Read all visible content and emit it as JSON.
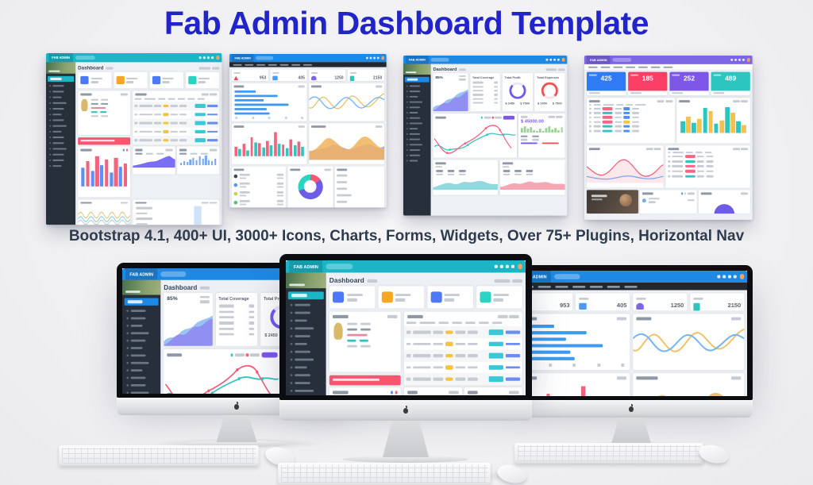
{
  "page": {
    "title": "Fab Admin Dashboard Template",
    "subtitle": "Bootstrap 4.1, 400+ UI, 3000+ Icons, Charts, Forms, Widgets, Over 75+ Plugins, Horizontal Nav"
  },
  "brand": "FAB ADMIN",
  "colors": {
    "title_blue": "#2125c9",
    "subtitle_navy": "#2f3c4e",
    "teal_navbar": "#1bb5c6",
    "blue_navbar": "#1e88e5",
    "purple_navbar": "#7d66e3",
    "sidebar_dark": "#27303a",
    "alert_pink": "#f8566f",
    "stat_card_blue": "#2f7bf6",
    "stat_card_red": "#fb3e64",
    "stat_card_purple": "#7e57e8",
    "stat_card_teal": "#2cc5c0",
    "chart_blue": "#5b8ff9",
    "chart_red": "#f0647e",
    "chart_teal": "#35c3c1",
    "chart_yellow": "#eec36a",
    "chart_purple_area": "#7b6ef6"
  },
  "icons": {
    "apple_logo": "apple-logo-icon (css shape)",
    "teal_dashboard_stat_icons": [
      "user-icon",
      "document-icon",
      "calendar-icon",
      "heart-icon"
    ],
    "blue_dashboard_stat_icons": [
      "alert-triangle-icon",
      "image-icon",
      "user-group-icon",
      "box-icon"
    ],
    "navbar_icons": [
      "search-icon",
      "grid-icon",
      "mail-icon",
      "bell-icon",
      "avatar"
    ]
  },
  "dashboard_teal": {
    "heading": "Dashboard"
  },
  "dashboard_horizontal_blue": {
    "stats": [
      {
        "icon": "alert-triangle-icon",
        "value": "953"
      },
      {
        "icon": "image-icon",
        "value": "405"
      },
      {
        "icon": "user-group-icon",
        "value": "1250"
      },
      {
        "icon": "box-icon",
        "value": "2150"
      }
    ]
  },
  "dashboard_sidebar_blue": {
    "heading": "Dashboard",
    "percent": "85%",
    "coverage_title": "Total Coverage",
    "profit_title": "Total Profit",
    "expenses_title": "Total Expenses",
    "amount_small": "$ 2450",
    "amount_big": "$ 7500",
    "revenue": "$ 45000.00"
  },
  "dashboard_horizontal_purple": {
    "stats": [
      {
        "value": "425"
      },
      {
        "value": "185"
      },
      {
        "value": "252"
      },
      {
        "value": "489"
      }
    ]
  }
}
